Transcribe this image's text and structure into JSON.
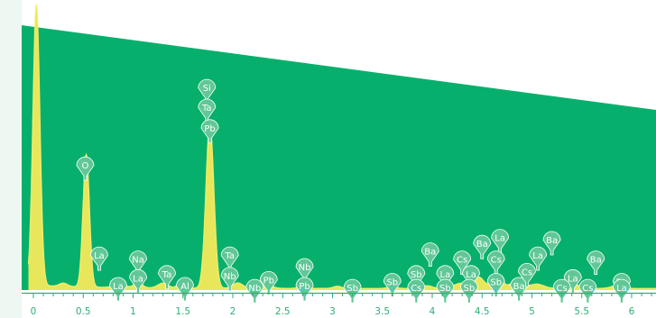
{
  "chart_data": {
    "type": "line",
    "title": "",
    "xlabel": "",
    "ylabel": "",
    "xlim": [
      0,
      6.25
    ],
    "ylim": [
      0,
      1
    ],
    "x_ticks": [
      "0",
      "0.5",
      "1",
      "1.5",
      "2",
      "2.5",
      "3",
      "3.5",
      "4",
      "4.5",
      "5",
      "5.5",
      "6"
    ],
    "x_tick_values": [
      0,
      0.5,
      1,
      1.5,
      2,
      2.5,
      3,
      3.5,
      4,
      4.5,
      5,
      5.5,
      6
    ],
    "grid": false,
    "legend": "none",
    "colors": {
      "background": "#06b06c",
      "spectrum_fill": "#e8e65a",
      "spectrum_stroke": "#f2ee6c",
      "marker": "#61c796",
      "axis": "#2fae73",
      "panel_left": "#eef8f2"
    },
    "series": [
      {
        "peaks": [
          {
            "x": 0.03,
            "y": 1.04
          },
          {
            "x": 0.53,
            "y": 0.49
          },
          {
            "x": 1.77,
            "y": 0.61
          }
        ]
      }
    ],
    "markers": [
      {
        "label": "O",
        "x": 0.52,
        "y": 0.461
      },
      {
        "label": "Si",
        "x": 1.74,
        "y": 0.748
      },
      {
        "label": "Ta",
        "x": 1.74,
        "y": 0.675
      },
      {
        "label": "Pb",
        "x": 1.77,
        "y": 0.599
      },
      {
        "label": "La",
        "x": 0.66,
        "y": 0.128
      },
      {
        "label": "Na",
        "x": 1.05,
        "y": 0.113
      },
      {
        "label": "La",
        "x": 0.85,
        "y": 0.015
      },
      {
        "label": "La",
        "x": 1.05,
        "y": 0.044
      },
      {
        "label": "Ta",
        "x": 1.34,
        "y": 0.059
      },
      {
        "label": "Al",
        "x": 1.52,
        "y": 0.015
      },
      {
        "label": "Ta",
        "x": 1.97,
        "y": 0.128
      },
      {
        "label": "Nb",
        "x": 1.97,
        "y": 0.052
      },
      {
        "label": "Nb",
        "x": 2.22,
        "y": 0.008
      },
      {
        "label": "Pb",
        "x": 2.36,
        "y": 0.037
      },
      {
        "label": "Nb",
        "x": 2.72,
        "y": 0.085
      },
      {
        "label": "Pb",
        "x": 2.72,
        "y": 0.015
      },
      {
        "label": "Sb",
        "x": 3.2,
        "y": 0.008
      },
      {
        "label": "Sb",
        "x": 3.6,
        "y": 0.03
      },
      {
        "label": "Ba",
        "x": 3.98,
        "y": 0.143
      },
      {
        "label": "Sb",
        "x": 3.84,
        "y": 0.059
      },
      {
        "label": "Cs",
        "x": 3.84,
        "y": 0.008
      },
      {
        "label": "La",
        "x": 4.13,
        "y": 0.059
      },
      {
        "label": "Sb",
        "x": 4.13,
        "y": 0.008
      },
      {
        "label": "Cs",
        "x": 4.3,
        "y": 0.113
      },
      {
        "label": "Ba",
        "x": 4.5,
        "y": 0.171
      },
      {
        "label": "La",
        "x": 4.68,
        "y": 0.193
      },
      {
        "label": "Cs",
        "x": 4.64,
        "y": 0.113
      },
      {
        "label": "La",
        "x": 4.39,
        "y": 0.059
      },
      {
        "label": "Sb",
        "x": 4.37,
        "y": 0.008
      },
      {
        "label": "Sb",
        "x": 4.64,
        "y": 0.03
      },
      {
        "label": "Ba",
        "x": 4.87,
        "y": 0.015
      },
      {
        "label": "Cs",
        "x": 4.95,
        "y": 0.067
      },
      {
        "label": "La",
        "x": 5.06,
        "y": 0.128
      },
      {
        "label": "Ba",
        "x": 5.2,
        "y": 0.185
      },
      {
        "label": "La",
        "x": 5.41,
        "y": 0.044
      },
      {
        "label": "Cs",
        "x": 5.3,
        "y": 0.008
      },
      {
        "label": "Ba",
        "x": 5.64,
        "y": 0.113
      },
      {
        "label": "Cs",
        "x": 5.56,
        "y": 0.008
      },
      {
        "label": "Ba",
        "x": 5.9,
        "y": 0.03
      },
      {
        "label": "La",
        "x": 5.9,
        "y": 0.008
      }
    ]
  }
}
